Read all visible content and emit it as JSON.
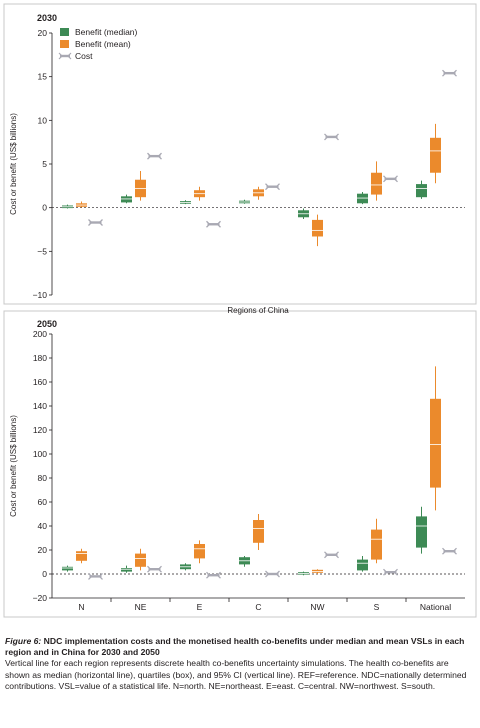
{
  "colors": {
    "median": "#3d8a55",
    "mean": "#eb8a2c",
    "cost": "#a9a9b3",
    "frame": "#c8c8c8",
    "axis": "#231f20"
  },
  "chart_data": [
    {
      "type": "boxplot",
      "title": "2030",
      "ylabel": "Cost or benefit (US$ billions)",
      "xlabel": "",
      "ylim": [
        -10,
        20
      ],
      "yticks": [
        -10,
        -5,
        0,
        5,
        10,
        15,
        20
      ],
      "legend": {
        "placement": "top-left",
        "entries": [
          "Benefit (median)",
          "Benefit (mean)",
          "Cost"
        ]
      },
      "reference_line": 0,
      "categories": [
        "N",
        "NE",
        "E",
        "C",
        "NW",
        "S",
        "National"
      ],
      "series": [
        {
          "name": "Benefit (median)",
          "kind": "box",
          "data": [
            {
              "low": -0.1,
              "q1": -0.05,
              "med": 0.1,
              "q3": 0.25,
              "high": 0.35
            },
            {
              "low": 0.5,
              "q1": 0.6,
              "med": 1.0,
              "q3": 1.3,
              "high": 1.5
            },
            {
              "low": 0.4,
              "q1": 0.45,
              "med": 0.6,
              "q3": 0.75,
              "high": 0.85
            },
            {
              "low": 0.45,
              "q1": 0.5,
              "med": 0.65,
              "q3": 0.8,
              "high": 0.9
            },
            {
              "low": -1.3,
              "q1": -1.1,
              "med": -0.7,
              "q3": -0.3,
              "high": -0.1
            },
            {
              "low": 0.4,
              "q1": 0.5,
              "med": 1.1,
              "q3": 1.6,
              "high": 1.8
            },
            {
              "low": 1.0,
              "q1": 1.2,
              "med": 2.2,
              "q3": 2.7,
              "high": 3.1
            }
          ]
        },
        {
          "name": "Benefit (mean)",
          "kind": "box",
          "data": [
            {
              "low": 0.0,
              "q1": 0.1,
              "med": 0.3,
              "q3": 0.5,
              "high": 0.7
            },
            {
              "low": 0.8,
              "q1": 1.2,
              "med": 2.2,
              "q3": 3.2,
              "high": 4.2
            },
            {
              "low": 0.8,
              "q1": 1.2,
              "med": 1.6,
              "q3": 2.0,
              "high": 2.4
            },
            {
              "low": 0.9,
              "q1": 1.3,
              "med": 1.7,
              "q3": 2.1,
              "high": 2.4
            },
            {
              "low": -4.4,
              "q1": -3.3,
              "med": -2.6,
              "q3": -1.4,
              "high": -0.8
            },
            {
              "low": 0.8,
              "q1": 1.5,
              "med": 2.6,
              "q3": 4.0,
              "high": 5.3
            },
            {
              "low": 2.8,
              "q1": 4.0,
              "med": 6.5,
              "q3": 8.0,
              "high": 9.6
            }
          ]
        },
        {
          "name": "Cost",
          "kind": "point",
          "values": [
            -1.7,
            5.9,
            -1.9,
            2.4,
            8.1,
            3.3,
            15.4
          ]
        }
      ]
    },
    {
      "type": "boxplot",
      "title": "2050",
      "ylabel": "Cost or benefit (US$ billions)",
      "xlabel": "Regions of China",
      "ylim": [
        -20,
        200
      ],
      "yticks": [
        -20,
        0,
        20,
        40,
        60,
        80,
        100,
        120,
        140,
        160,
        180,
        200
      ],
      "reference_line": 0,
      "categories": [
        "N",
        "NE",
        "E",
        "C",
        "NW",
        "S",
        "National"
      ],
      "series": [
        {
          "name": "Benefit (median)",
          "kind": "box",
          "data": [
            {
              "low": 2,
              "q1": 3,
              "med": 5,
              "q3": 6,
              "high": 7
            },
            {
              "low": 1,
              "q1": 2,
              "med": 4,
              "q3": 5,
              "high": 7
            },
            {
              "low": 3,
              "q1": 4,
              "med": 6,
              "q3": 8,
              "high": 9
            },
            {
              "low": 6,
              "q1": 8,
              "med": 11,
              "q3": 14,
              "high": 15
            },
            {
              "low": -1,
              "q1": -0.5,
              "med": 0.5,
              "q3": 1.5,
              "high": 2
            },
            {
              "low": 2,
              "q1": 3,
              "med": 9,
              "q3": 12,
              "high": 15
            },
            {
              "low": 17,
              "q1": 22,
              "med": 40,
              "q3": 48,
              "high": 56
            }
          ]
        },
        {
          "name": "Benefit (mean)",
          "kind": "box",
          "data": [
            {
              "low": 9,
              "q1": 11,
              "med": 17,
              "q3": 19,
              "high": 21
            },
            {
              "low": 3,
              "q1": 6,
              "med": 13,
              "q3": 17,
              "high": 21
            },
            {
              "low": 9,
              "q1": 13,
              "med": 21,
              "q3": 25,
              "high": 28
            },
            {
              "low": 20,
              "q1": 26,
              "med": 38,
              "q3": 45,
              "high": 50
            },
            {
              "low": 0,
              "q1": 1,
              "med": 2,
              "q3": 3.5,
              "high": 4
            },
            {
              "low": 9,
              "q1": 12,
              "med": 29,
              "q3": 37,
              "high": 46
            },
            {
              "low": 53,
              "q1": 72,
              "med": 108,
              "q3": 146,
              "high": 173
            }
          ]
        },
        {
          "name": "Cost",
          "kind": "point",
          "values": [
            -2,
            4,
            -1,
            0,
            16,
            1.5,
            19
          ]
        }
      ]
    }
  ],
  "caption": {
    "figure_label": "Figure 6:",
    "title": " NDC implementation costs and the monetised health co-benefits under median and mean VSLs in each region and in China for 2030 and 2050",
    "notes": "Vertical line for each region represents discrete health co-benefits uncertainty simulations. The health co-benefits are shown as median (horizontal line), quartiles (box), and 95% CI (vertical line). REF=reference. NDC=nationally determined contributions. VSL=value of a statistical life. N=north. NE=northeast. E=east. C=central. NW=northwest. S=south."
  }
}
